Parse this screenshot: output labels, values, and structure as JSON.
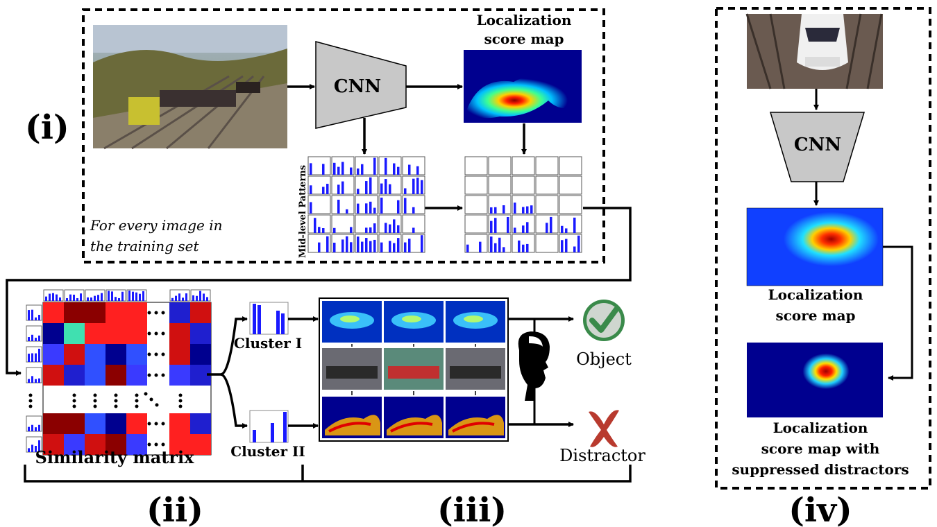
{
  "labels": {
    "panel_i": "(i)",
    "panel_ii": "(ii)",
    "panel_iii": "(iii)",
    "panel_iv": "(iv)",
    "cnn": "CNN",
    "loc_map_line1": "Localization",
    "loc_map_line2": "score map",
    "midlevel": "Mid-level Patterns",
    "every_image_line1": "For every image in",
    "every_image_line2": "the training set",
    "similarity": "Similarity matrix",
    "cluster1": "Cluster I",
    "cluster2": "Cluster II",
    "object": "Object",
    "distractor": "Distractor",
    "iv_loc_line1": "Localization",
    "iv_loc_line2": "score map",
    "iv_sup_line1": "Localization",
    "iv_sup_line2": "score map with",
    "iv_sup_line3": "suppressed distractors"
  },
  "colors": {
    "bar_blue": "#1a1aff",
    "gray_cnn": "#c8c8c8",
    "object_green": "#3a8a4a",
    "distractor_red": "#b83a2e",
    "heat_low": "#00008f",
    "heat_high": "#ff0000"
  },
  "icons": [
    "train-photo",
    "cnn-trapezoid",
    "heatmap",
    "checkmark-icon",
    "x-mark-icon",
    "human-head-icon"
  ]
}
